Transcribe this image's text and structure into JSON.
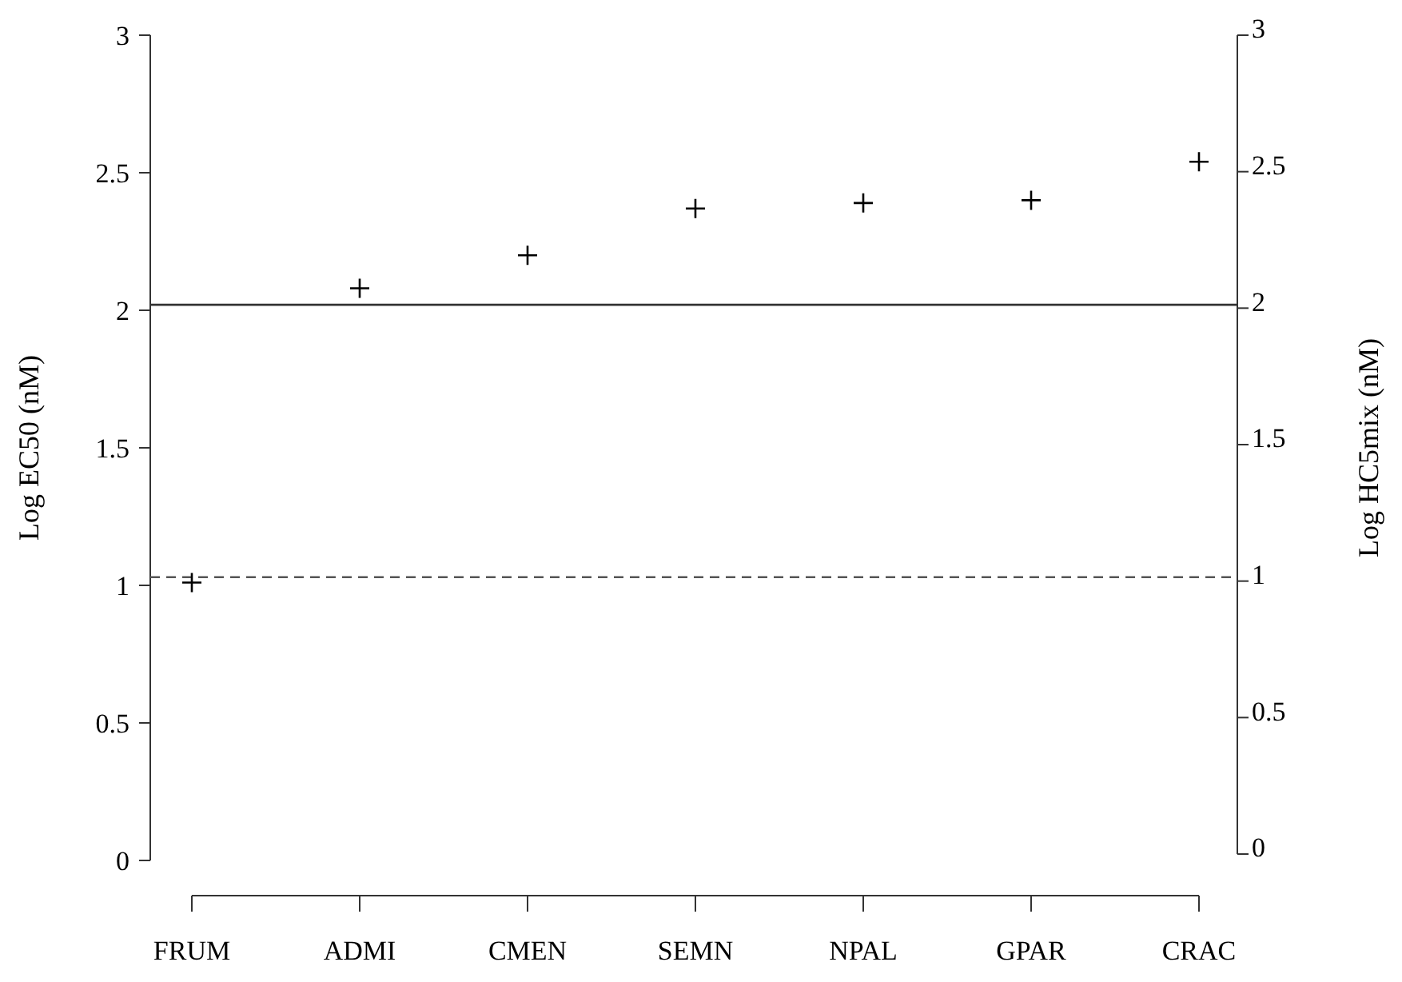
{
  "chart_data": {
    "type": "scatter",
    "ylabel": "Log EC50 (nM)",
    "y2label": "Log HC5mix (nM)",
    "categories": [
      "FRUM",
      "ADMI",
      "CMEN",
      "SEMN",
      "NPAL",
      "GPAR",
      "CRAC"
    ],
    "series": [
      {
        "color": "#000000",
        "values": [
          1.01,
          2.08,
          2.2,
          2.37,
          2.39,
          2.4,
          2.54
        ]
      }
    ],
    "ylim": [
      0,
      3
    ],
    "yticks": [
      0,
      0.5,
      1,
      1.5,
      2,
      2.5,
      3
    ],
    "y2lim": [
      0,
      3
    ],
    "y2ticks": [
      0,
      0.5,
      1,
      1.5,
      2,
      2.5,
      3
    ],
    "ref_lines": [
      {
        "axis": "y",
        "value": 2.02,
        "line_style": "solid",
        "color": "#333333"
      },
      {
        "axis": "y",
        "value": 1.03,
        "line_style": "dashed",
        "color": "#555555"
      }
    ],
    "marker": "cross"
  }
}
